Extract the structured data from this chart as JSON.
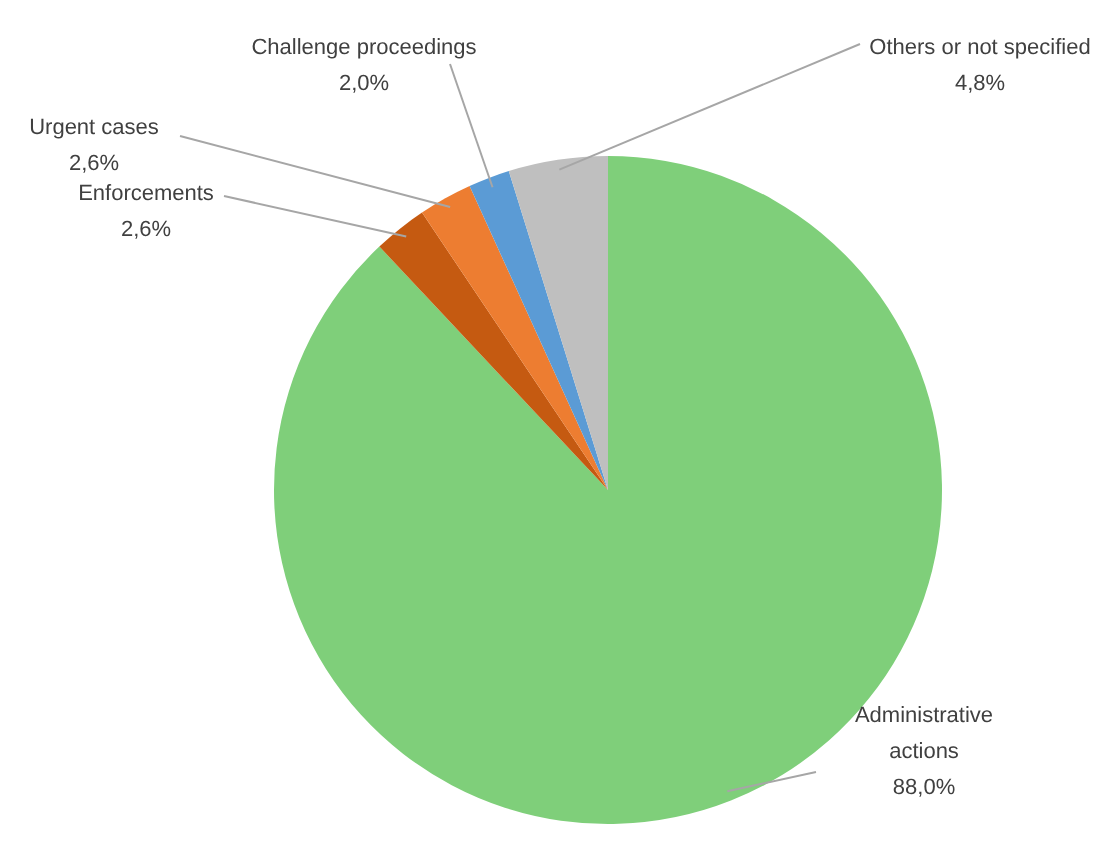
{
  "chart_data": {
    "type": "pie",
    "categories": [
      "Administrative actions",
      "Enforcements",
      "Urgent cases",
      "Challenge proceedings",
      "Others or not specified"
    ],
    "values": [
      88.0,
      2.6,
      2.6,
      2.0,
      4.8
    ],
    "colors": [
      "#7fcf7a",
      "#c55a11",
      "#ed7d31",
      "#5b9bd5",
      "#bfbfbf"
    ],
    "value_labels": [
      "88,0%",
      "2,6%",
      "2,6%",
      "2,0%",
      "4,8%"
    ],
    "legend": false
  }
}
